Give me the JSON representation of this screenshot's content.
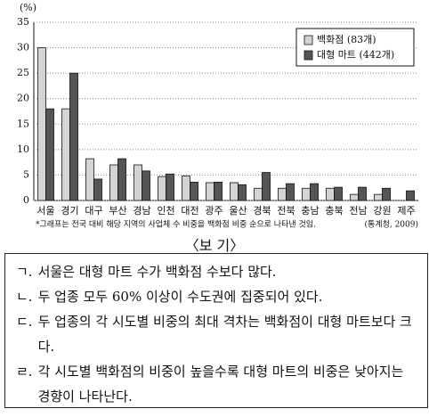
{
  "chart_data": {
    "type": "bar",
    "y_unit": "(%)",
    "categories": [
      "서울",
      "경기",
      "대구",
      "부산",
      "경남",
      "인천",
      "대전",
      "광주",
      "울산",
      "경북",
      "전북",
      "충남",
      "충북",
      "전남",
      "강원",
      "제주"
    ],
    "series": [
      {
        "name": "백화점 (83개)",
        "color": "#d4d4d4",
        "values": [
          30,
          18,
          8.2,
          7,
          7,
          4.7,
          4.8,
          3.5,
          3.5,
          2.4,
          2.4,
          2.4,
          2.4,
          1.2,
          1.2,
          0
        ]
      },
      {
        "name": "대형 마트 (442개)",
        "color": "#555555",
        "values": [
          18,
          25,
          4.2,
          8.2,
          5.8,
          5.2,
          3.6,
          3.6,
          3.1,
          5.5,
          3.3,
          3.3,
          2.6,
          2.6,
          2.4,
          1.9
        ]
      }
    ],
    "ylim": [
      0,
      35
    ],
    "yticks": [
      0,
      5,
      10,
      15,
      20,
      25,
      30,
      35
    ],
    "grid": true,
    "note": "*그래프는 전국 대비 해당 지역의 사업체 수 비중을 백화점 비중 순으로 나타낸 것임.",
    "source": "(통계청, 2009)"
  },
  "box": {
    "title": "〈보 기〉",
    "items": [
      {
        "label": "ㄱ.",
        "text": "서울은 대형 마트 수가 백화점 수보다 많다."
      },
      {
        "label": "ㄴ.",
        "text": "두 업종 모두 60% 이상이 수도권에 집중되어 있다."
      },
      {
        "label": "ㄷ.",
        "text": "두 업종의 각 시도별 비중의 최대 격차는 백화점이 대형 마트보다 크다."
      },
      {
        "label": "ㄹ.",
        "text": "각 시도별 백화점의 비중이 높을수록 대형 마트의 비중은 낮아지는 경향이 나타난다."
      }
    ]
  }
}
